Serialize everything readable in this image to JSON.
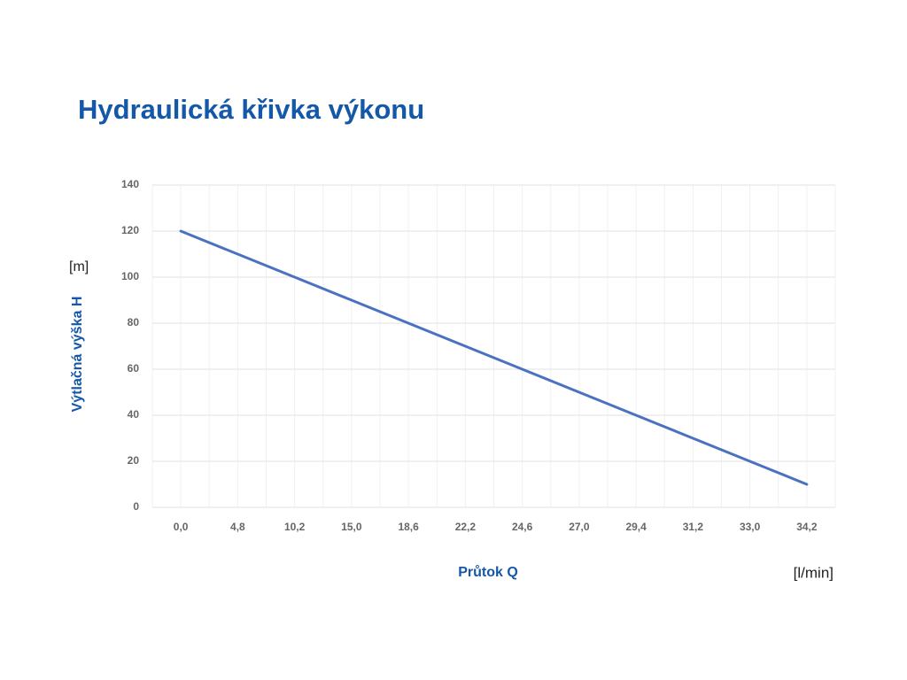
{
  "chart_data": {
    "type": "line",
    "title": "Hydraulická křivka výkonu",
    "x_label": "Průtok Q",
    "x_unit": "[l/min]",
    "y_label": "Výtlačná výška H",
    "y_unit": "[m]",
    "categories": [
      "0,0",
      "4,8",
      "10,2",
      "15,0",
      "18,6",
      "22,2",
      "24,6",
      "27,0",
      "29,4",
      "31,2",
      "33,0",
      "34,2"
    ],
    "series": [
      {
        "color": "#4a72c0",
        "values": [
          120,
          110,
          100,
          90,
          80,
          70,
          60,
          50,
          40,
          30,
          20,
          10
        ]
      }
    ],
    "ylim": [
      0,
      140
    ],
    "yticks": [
      0,
      20,
      40,
      60,
      80,
      100,
      120,
      140
    ],
    "grid": true
  }
}
